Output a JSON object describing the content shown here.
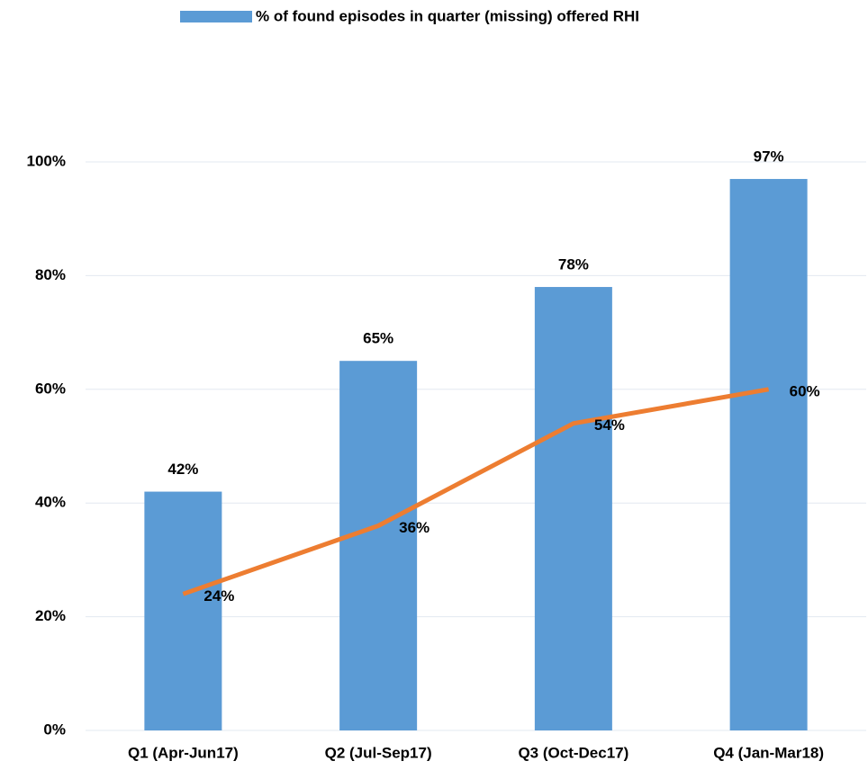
{
  "chart_data": {
    "type": "bar",
    "categories": [
      "Q1 (Apr-Jun17)",
      "Q2 (Jul-Sep17)",
      "Q3 (Oct-Dec17)",
      "Q4 (Jan-Mar18)"
    ],
    "series": [
      {
        "name": "% of found episodes in quarter (missing) offered RHI",
        "type": "bar",
        "color": "#5b9bd5",
        "values": [
          42,
          65,
          78,
          97
        ],
        "value_labels": [
          "42%",
          "65%",
          "78%",
          "97%"
        ]
      },
      {
        "type": "line",
        "color": "#ed7d31",
        "values": [
          24,
          36,
          54,
          60
        ],
        "value_labels": [
          "24%",
          "36%",
          "54%",
          "60%"
        ]
      }
    ],
    "ylim": [
      0,
      100
    ],
    "yticks": [
      {
        "value": 0,
        "label": "0%"
      },
      {
        "value": 20,
        "label": "20%"
      },
      {
        "value": 40,
        "label": "40%"
      },
      {
        "value": 60,
        "label": "60%"
      },
      {
        "value": 80,
        "label": "80%"
      },
      {
        "value": 100,
        "label": "100%"
      }
    ],
    "grid": true,
    "legend": "top"
  }
}
